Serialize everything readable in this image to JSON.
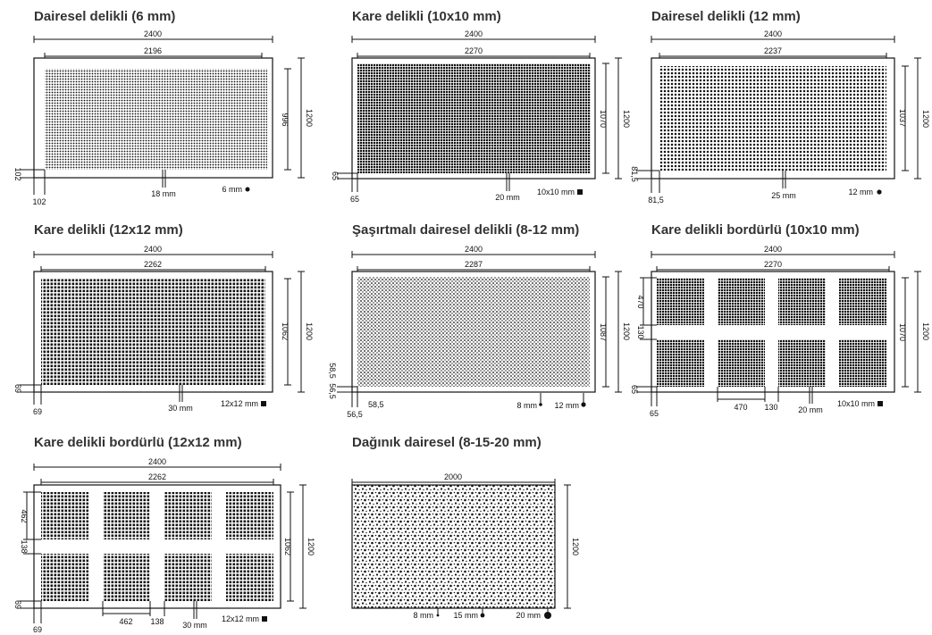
{
  "panels": [
    {
      "title": "Dairesel delikli (6 mm)",
      "dims": {
        "total_width": "2400",
        "perf_width": "2196",
        "perf_height": "996",
        "total_height": "1200",
        "margin_x": "102",
        "margin_y": "102",
        "pitch": "18 mm",
        "hole": "6 mm"
      }
    },
    {
      "title": "Kare delikli (10x10 mm)",
      "dims": {
        "total_width": "2400",
        "perf_width": "2270",
        "perf_height": "1070",
        "total_height": "1200",
        "margin_x": "65",
        "margin_y": "65",
        "pitch": "20 mm",
        "hole": "10x10 mm"
      }
    },
    {
      "title": "Dairesel delikli (12 mm)",
      "dims": {
        "total_width": "2400",
        "perf_width": "2237",
        "perf_height": "1037",
        "total_height": "1200",
        "margin_x": "81,5",
        "margin_y": "81,5",
        "pitch": "25 mm",
        "hole": "12 mm"
      }
    },
    {
      "title": "Kare delikli (12x12 mm)",
      "dims": {
        "total_width": "2400",
        "perf_width": "2262",
        "perf_height": "1062",
        "total_height": "1200",
        "margin_x": "69",
        "margin_y": "69",
        "pitch": "30 mm",
        "hole": "12x12 mm"
      }
    },
    {
      "title": "Şaşırtmalı dairesel delikli (8-12 mm)",
      "dims": {
        "total_width": "2400",
        "perf_width": "2287",
        "perf_height": "1087",
        "total_height": "1200",
        "margin_x_a": "58,5",
        "margin_x_b": "56,5",
        "margin_y_a": "58,5",
        "margin_y_b": "56,5",
        "hole_small": "8 mm",
        "hole_large": "12 mm"
      }
    },
    {
      "title": "Kare delikli bordürlü (10x10 mm)",
      "dims": {
        "total_width": "2400",
        "perf_width": "2270",
        "perf_height": "1070",
        "total_height": "1200",
        "block_h": "470",
        "gap_h": "130",
        "block_w": "470",
        "gap_w": "130",
        "margin_x": "65",
        "margin_y": "65",
        "pitch": "20 mm",
        "hole": "10x10 mm"
      }
    },
    {
      "title": "Kare delikli bordürlü (12x12 mm)",
      "dims": {
        "total_width": "2400",
        "perf_width": "2262",
        "perf_height": "1062",
        "total_height": "1200",
        "block_h": "462",
        "gap_h": "138",
        "block_w": "462",
        "gap_w": "138",
        "margin_x": "69",
        "margin_y": "69",
        "pitch": "30 mm",
        "hole": "12x12 mm"
      }
    },
    {
      "title": "Dağınık dairesel (8-15-20 mm)",
      "dims": {
        "total_width": "2000",
        "total_height": "1200",
        "hole_a": "8 mm",
        "hole_b": "15 mm",
        "hole_c": "20 mm"
      }
    }
  ],
  "colors": {
    "ink": "#111111",
    "title": "#333333",
    "paper": "#ffffff"
  }
}
